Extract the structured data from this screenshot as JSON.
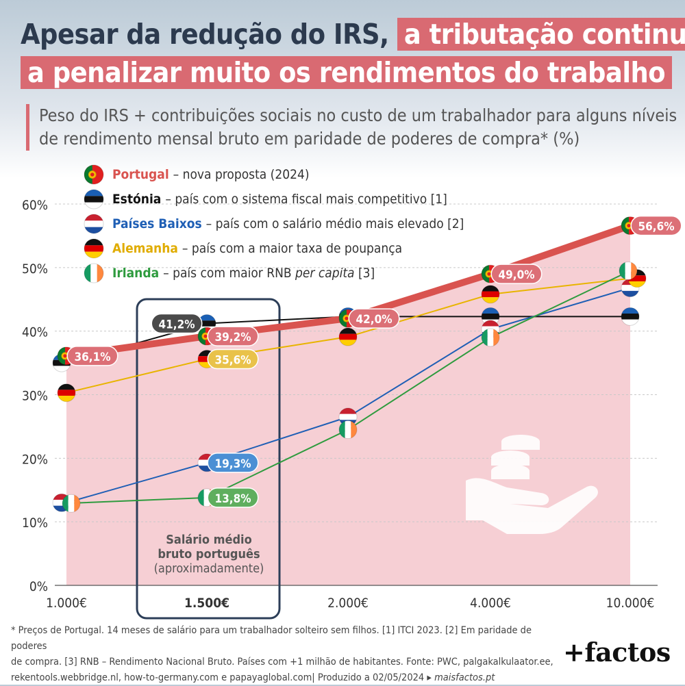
{
  "title": {
    "line1_plain": "Apesar da redução do IRS,",
    "line1_highlight": "a tributação continua",
    "line2_highlight": "a penalizar muito os rendimentos do trabalho"
  },
  "subtitle": "Peso do IRS + contribuições sociais no custo de um trabalhador para alguns níveis de rendimento mensal bruto em paridade de poderes de compra* (%)",
  "legend": [
    {
      "name": "Portugal",
      "desc": "– nova proposta (2024)",
      "flag": "portugal-flag-icon",
      "color": "#d9534f"
    },
    {
      "name": "Estónia",
      "desc": "– país com o sistema fiscal mais competitivo [1]",
      "flag": "estonia-flag-icon",
      "color": "#111111"
    },
    {
      "name": "Países Baixos",
      "desc": "– país com o salário médio mais elevado [2]",
      "flag": "netherlands-flag-icon",
      "color": "#1f5fb5"
    },
    {
      "name": "Alemanha",
      "desc": "– país com a maior taxa de poupança",
      "flag": "germany-flag-icon",
      "color": "#e8b400"
    },
    {
      "name": "Irlanda",
      "desc_before": "– país com maior RNB ",
      "desc_italic": "per capita",
      "desc_after": " [3]",
      "flag": "ireland-flag-icon",
      "color": "#2e9b3e"
    }
  ],
  "highlight_box": {
    "line1": "Salário médio",
    "line2": "bruto português",
    "line3": "(aproximadamente)"
  },
  "chart_data": {
    "type": "line",
    "categories": [
      "1.000€",
      "1.500€",
      "2.000€",
      "4.000€",
      "10.000€"
    ],
    "ylim": [
      0,
      60
    ],
    "yticks": [
      "0%",
      "10%",
      "20%",
      "30%",
      "40%",
      "50%",
      "60%"
    ],
    "highlight_category": "1.500€",
    "series": [
      {
        "name": "Portugal",
        "color": "#d9534f",
        "values": [
          36.1,
          39.2,
          42.0,
          49.0,
          56.6
        ],
        "labels": [
          "36,1%",
          "39,2%",
          "42,0%",
          "49,0%",
          "56,6%"
        ],
        "area": true
      },
      {
        "name": "Estónia",
        "color": "#111111",
        "values": [
          35.0,
          41.2,
          42.3,
          42.3,
          42.3
        ],
        "labels": [
          "",
          "41,2%",
          "",
          "",
          ""
        ]
      },
      {
        "name": "Países Baixos",
        "color": "#1f5fb5",
        "values": [
          13.0,
          19.3,
          26.5,
          40.3,
          46.8
        ],
        "labels": [
          "",
          "19,3%",
          "",
          "",
          ""
        ]
      },
      {
        "name": "Alemanha",
        "color": "#e8b400",
        "values": [
          30.3,
          35.6,
          39.1,
          45.8,
          48.3
        ],
        "labels": [
          "",
          "35,6%",
          "",
          "",
          ""
        ]
      },
      {
        "name": "Irlanda",
        "color": "#2e9b3e",
        "values": [
          12.9,
          13.8,
          24.5,
          39.0,
          49.5
        ],
        "labels": [
          "",
          "13,8%",
          "",
          "",
          ""
        ]
      }
    ]
  },
  "footnote_lines": [
    "* Preços de Portugal. 14 meses de salário para um trabalhador solteiro sem filhos. [1] ITCI 2023.  [2] Em paridade de poderes",
    "de compra. [3] RNB – Rendimento Nacional Bruto. Países com +1 milhão de habitantes. Fonte: PWC, palgakalkulaator.ee,",
    "rekentools.webbridge.nl, how-to-germany.com e papayaglobal.com|  Produzido a 02/05/2024 ▸ "
  ],
  "footnote_site": "maisfactos.pt",
  "logo": "+factos"
}
